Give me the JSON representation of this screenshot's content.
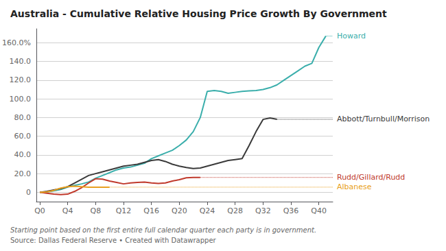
{
  "chart_data": {
    "type": "line",
    "title": "Australia - Cumulative Relative Housing Price Growth By Government",
    "subtitle": [
      "Starting point based on the first entire full calendar quarter each party is in government.",
      "Source: Dallas Federal Reserve • Created with Datawrapper"
    ],
    "xlim": [
      -0.5,
      42
    ],
    "xticks": [
      {
        "value": 0,
        "label": "Q0"
      },
      {
        "value": 4,
        "label": "Q4"
      },
      {
        "value": 8,
        "label": "Q8"
      },
      {
        "value": 12,
        "label": "Q12"
      },
      {
        "value": 16,
        "label": "Q16"
      },
      {
        "value": 20,
        "label": "Q20"
      },
      {
        "value": 24,
        "label": "Q24"
      },
      {
        "value": 28,
        "label": "Q28"
      },
      {
        "value": 32,
        "label": "Q32"
      },
      {
        "value": 36,
        "label": "Q36"
      },
      {
        "value": 40,
        "label": "Q40"
      }
    ],
    "ylim": [
      -10,
      175
    ],
    "yticks": [
      0,
      {
        "value": 20,
        "label": "20.0"
      },
      {
        "value": 40,
        "label": "40.0"
      },
      {
        "value": 60,
        "label": "60.0"
      },
      {
        "value": 80,
        "label": "80.0"
      },
      {
        "value": 100,
        "label": "100.0"
      },
      {
        "value": 120,
        "label": "120.0"
      },
      {
        "value": 140,
        "label": "140.0"
      },
      {
        "value": 160,
        "label": "160.0%"
      }
    ],
    "grid": true,
    "series": [
      {
        "name": "Howard",
        "color": "#3aaeab",
        "x": [
          0,
          1,
          2,
          3,
          4,
          5,
          6,
          7,
          8,
          9,
          10,
          11,
          12,
          13,
          14,
          15,
          16,
          17,
          18,
          19,
          20,
          21,
          22,
          23,
          24,
          25,
          26,
          27,
          28,
          29,
          30,
          31,
          32,
          33,
          34,
          35,
          36,
          37,
          38,
          39,
          40,
          41
        ],
        "values": [
          0,
          0.5,
          1.5,
          3.0,
          5.5,
          7.5,
          9.0,
          11.0,
          15.0,
          18.0,
          21.0,
          24.0,
          26.0,
          27.0,
          29.0,
          31.0,
          36.0,
          39.0,
          42.0,
          45.0,
          50.0,
          56.0,
          65.0,
          80.0,
          108.0,
          109.0,
          108.0,
          106.0,
          107.0,
          108.0,
          108.5,
          109.0,
          110.0,
          112.0,
          115.0,
          120.0,
          125.0,
          130.0,
          135.0,
          138.0,
          155.0,
          167.2
        ]
      },
      {
        "name": "Abbott/Turnbull/Morrison",
        "color": "#3a3a3a",
        "x": [
          0,
          1,
          2,
          3,
          4,
          5,
          6,
          7,
          8,
          9,
          10,
          11,
          12,
          13,
          14,
          15,
          16,
          17,
          18,
          19,
          20,
          21,
          22,
          23,
          24,
          25,
          26,
          27,
          28,
          29,
          30,
          31,
          32,
          33,
          34
        ],
        "values": [
          0,
          1.0,
          2.5,
          4.0,
          6.0,
          10.0,
          14.0,
          18.0,
          20.0,
          22.0,
          24.0,
          26.0,
          28.0,
          29.0,
          30.0,
          32.0,
          34.0,
          35.0,
          33.0,
          30.0,
          28.0,
          26.5,
          25.5,
          26.0,
          28.0,
          30.0,
          32.0,
          34.0,
          35.0,
          36.0,
          50.0,
          65.0,
          78.0,
          79.5,
          78.1
        ]
      },
      {
        "name": "Rudd/Gillard/Rudd",
        "color": "#c0392b",
        "x": [
          0,
          1,
          2,
          3,
          4,
          5,
          6,
          7,
          8,
          9,
          10,
          11,
          12,
          13,
          14,
          15,
          16,
          17,
          18,
          19,
          20,
          21,
          22,
          23
        ],
        "values": [
          0,
          -1.0,
          -2.0,
          -2.5,
          -2.0,
          1.0,
          5.0,
          10.0,
          14.5,
          14.0,
          12.0,
          10.5,
          9.0,
          10.0,
          10.5,
          11.0,
          10.0,
          9.5,
          10.0,
          12.0,
          13.5,
          15.5,
          15.9,
          15.9
        ]
      },
      {
        "name": "Albanese",
        "color": "#e8a020",
        "x": [
          0,
          1,
          2,
          3,
          4,
          5,
          6,
          7,
          8,
          9,
          10
        ],
        "values": [
          0,
          0.5,
          2.0,
          4.5,
          6.0,
          6.5,
          6.0,
          5.5,
          5.5,
          5.5,
          5.5
        ]
      }
    ]
  }
}
